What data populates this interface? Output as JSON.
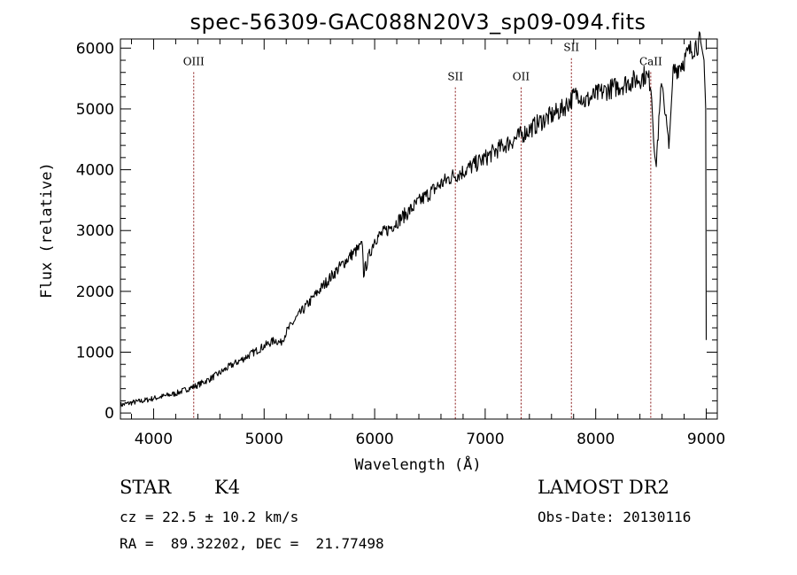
{
  "chart_data": {
    "type": "line",
    "title": "spec-56309-GAC088N20V3_sp09-094.fits",
    "xlabel": "Wavelength (Å)",
    "ylabel": "Flux (relative)",
    "xlim": [
      3700,
      9100
    ],
    "ylim": [
      -100,
      6150
    ],
    "xticks": [
      4000,
      5000,
      6000,
      7000,
      8000,
      9000
    ],
    "yticks": [
      0,
      1000,
      2000,
      3000,
      4000,
      5000,
      6000
    ],
    "series": [
      {
        "x": [
          3700,
          3800,
          3900,
          4000,
          4100,
          4200,
          4300,
          4400,
          4500,
          4600,
          4700,
          4800,
          4900,
          5000,
          5100,
          5150,
          5200,
          5300,
          5400,
          5500,
          5600,
          5700,
          5800,
          5890,
          5900,
          6000,
          6100,
          6200,
          6300,
          6400,
          6500,
          6600,
          6700,
          6800,
          6900,
          7000,
          7100,
          7200,
          7300,
          7400,
          7500,
          7600,
          7700,
          7800,
          7850,
          7900,
          8000,
          8100,
          8200,
          8300,
          8400,
          8450,
          8500,
          8542,
          8600,
          8662,
          8700,
          8800,
          8850,
          8900,
          8950,
          8980,
          8995,
          9000
        ],
        "y": [
          130,
          170,
          200,
          240,
          280,
          320,
          390,
          460,
          550,
          660,
          780,
          880,
          990,
          1100,
          1200,
          1150,
          1330,
          1580,
          1800,
          2020,
          2230,
          2430,
          2620,
          2750,
          2300,
          2860,
          2990,
          3140,
          3300,
          3470,
          3620,
          3770,
          3890,
          3970,
          4080,
          4190,
          4320,
          4430,
          4540,
          4660,
          4790,
          4890,
          5000,
          5200,
          5270,
          5120,
          5230,
          5310,
          5370,
          5440,
          5500,
          5560,
          5420,
          4000,
          5500,
          4350,
          5600,
          5800,
          5950,
          6050,
          6100,
          5800,
          5000,
          1200
        ]
      }
    ],
    "lines": [
      {
        "label": "OIII",
        "x": 4363,
        "label_y": 5720
      },
      {
        "label": "SII",
        "x": 6730,
        "label_y": 5470
      },
      {
        "label": "OII",
        "x": 7325,
        "label_y": 5470
      },
      {
        "label": "SII",
        "x": 7780,
        "label_y": 5950
      },
      {
        "label": "CaII",
        "x": 8498,
        "label_y": 5720
      }
    ]
  },
  "info": {
    "class": "STAR",
    "subclass": "K4",
    "survey": "LAMOST DR2",
    "cz": "cz = 22.5 ± 10.2 km/s",
    "obs_date": "Obs-Date: 20130116",
    "coords": "RA =  89.32202, DEC =  21.77498"
  }
}
